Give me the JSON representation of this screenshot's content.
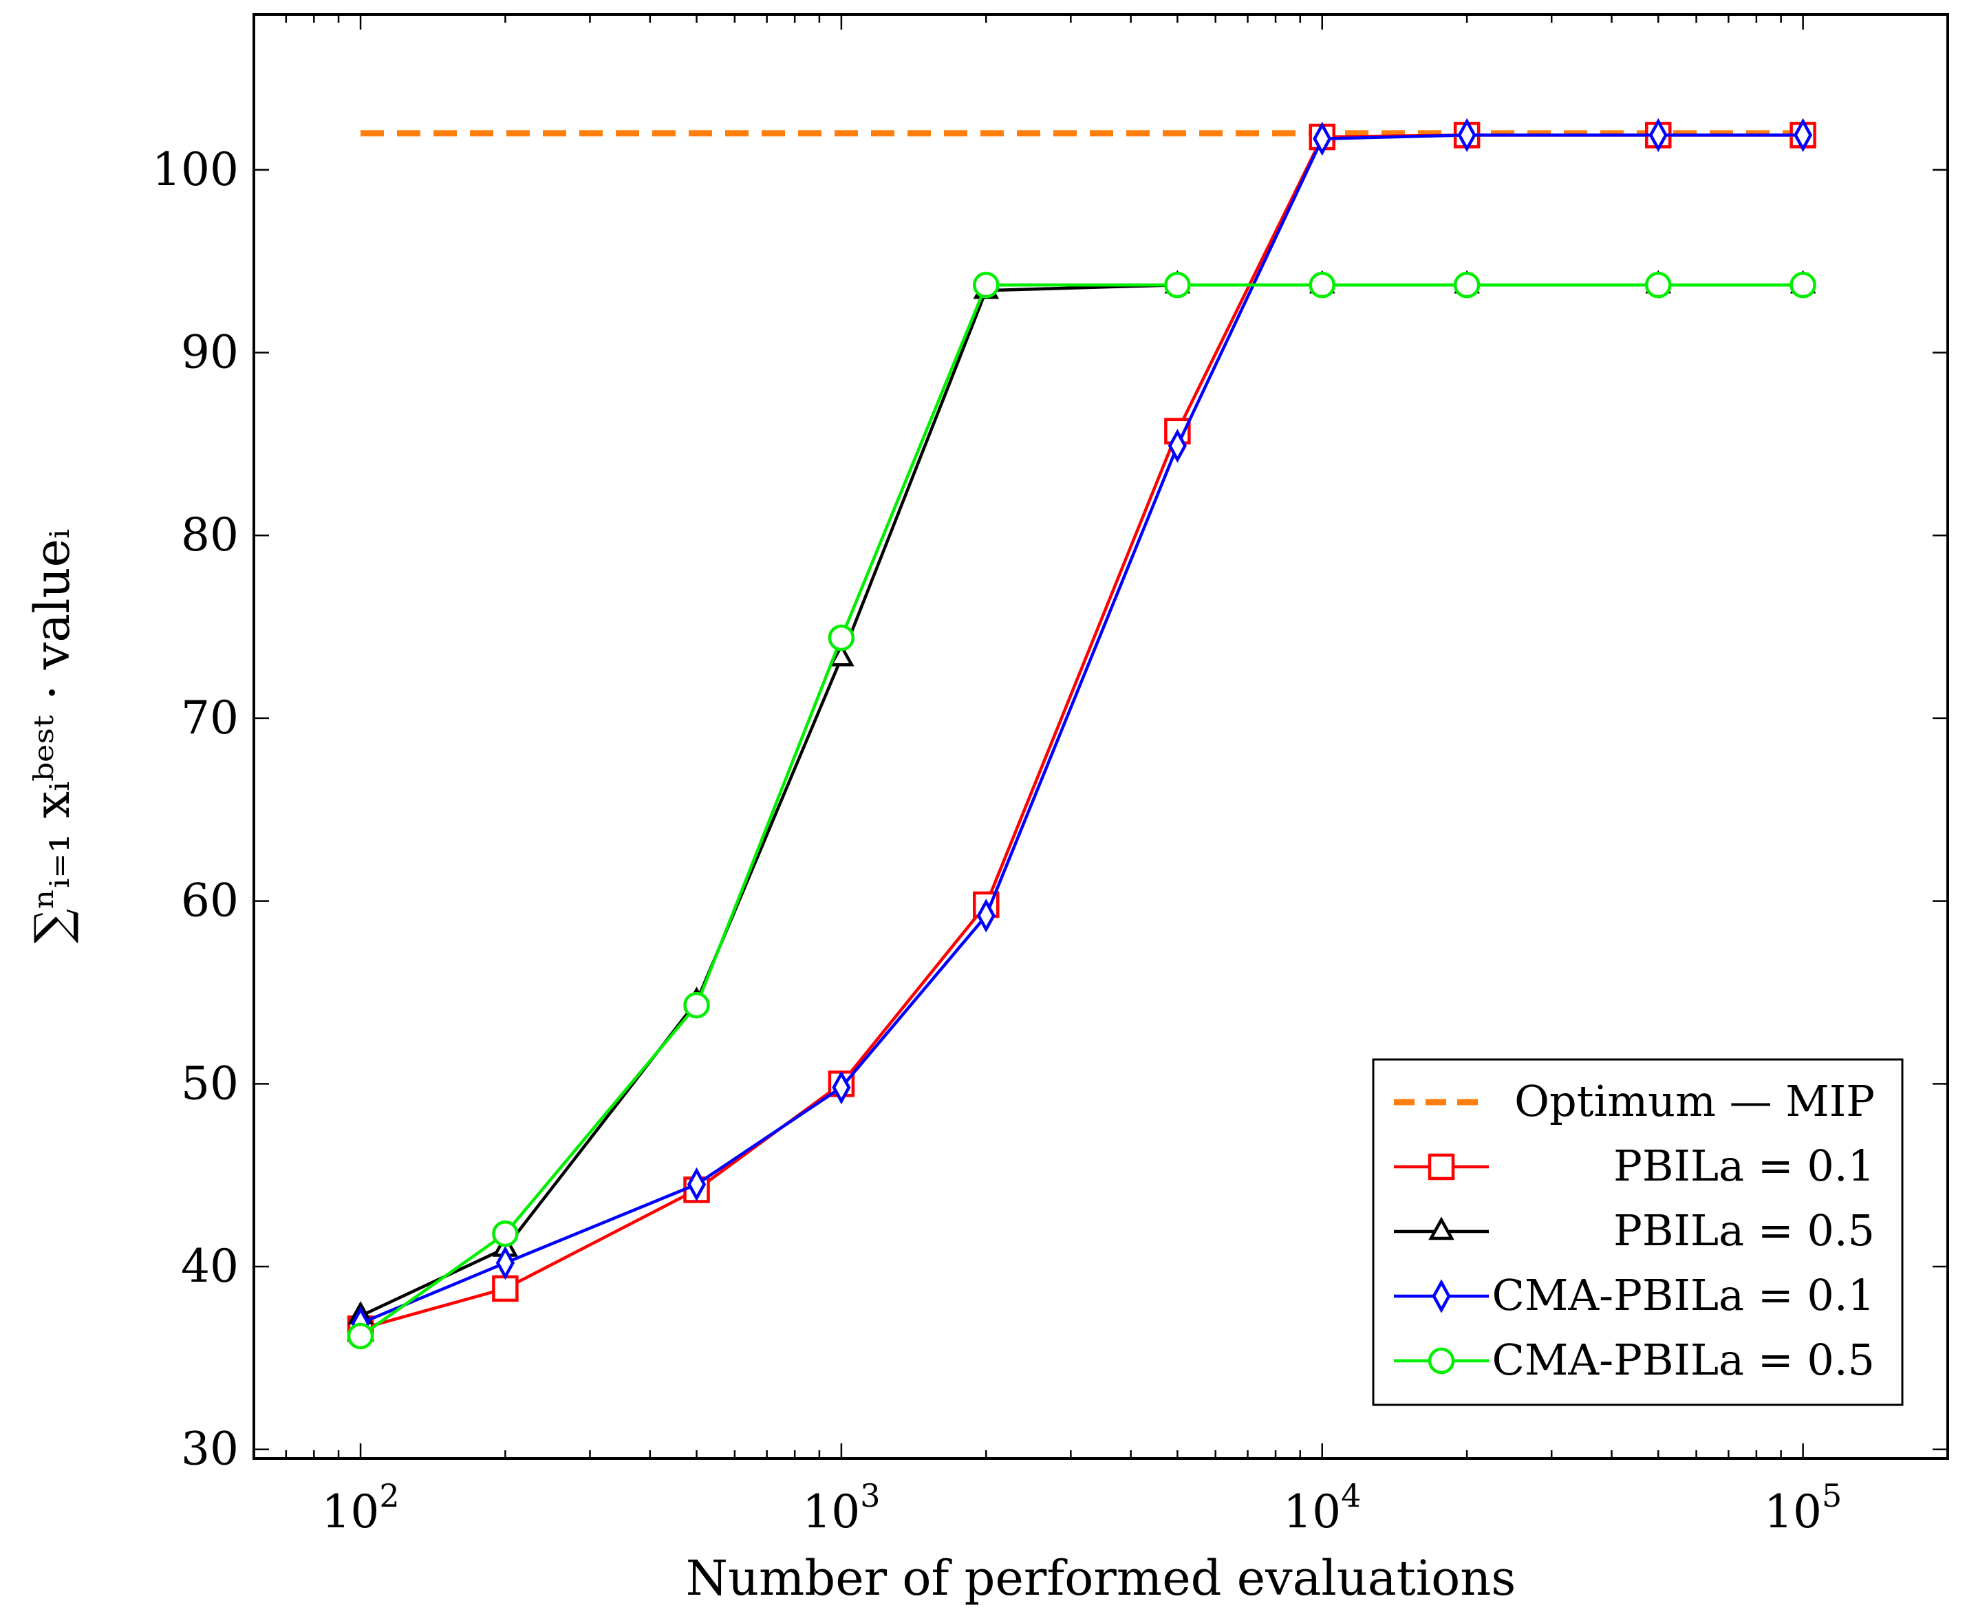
{
  "chart_data": {
    "type": "line",
    "xscale": "log",
    "xlabel": "Number of performed evaluations",
    "ylabel": "∑ⁿᵢ₌₁ xᵢᵇᵉˢᵗ · valueᵢ",
    "xlim": [
      60,
      200000
    ],
    "ylim": [
      29.5,
      108.5
    ],
    "xticks": [
      100,
      1000,
      10000,
      100000
    ],
    "xtick_labels": [
      {
        "base": "10",
        "exp": "2"
      },
      {
        "base": "10",
        "exp": "3"
      },
      {
        "base": "10",
        "exp": "4"
      },
      {
        "base": "10",
        "exp": "5"
      }
    ],
    "yticks": [
      30,
      40,
      50,
      60,
      70,
      80,
      90,
      100
    ],
    "grid": false,
    "legend_position": "bottom-right",
    "series": [
      {
        "name": "Optimum — MIP",
        "color": "#ff7f0e",
        "style": "dashed",
        "marker": "none",
        "x": [
          100,
          100000
        ],
        "y": [
          102,
          102
        ]
      },
      {
        "name": "PBILa = 0.1",
        "color": "#ff0000",
        "style": "solid",
        "marker": "square",
        "x": [
          100,
          200,
          500,
          1000,
          2000,
          5000,
          10000,
          20000,
          50000,
          100000
        ],
        "y": [
          36.6,
          38.8,
          44.2,
          50.0,
          59.8,
          85.7,
          101.8,
          101.9,
          101.9,
          101.9
        ]
      },
      {
        "name": "PBILa = 0.5",
        "color": "#000000",
        "style": "solid",
        "marker": "triangle",
        "x": [
          100,
          200,
          500,
          1000,
          2000,
          5000,
          10000,
          20000,
          50000,
          100000
        ],
        "y": [
          37.3,
          41.0,
          54.5,
          73.3,
          93.4,
          93.7,
          93.7,
          93.7,
          93.7,
          93.7
        ]
      },
      {
        "name": "CMA-PBILa = 0.1",
        "color": "#0000ff",
        "style": "solid",
        "marker": "diamond",
        "x": [
          100,
          200,
          500,
          1000,
          2000,
          5000,
          10000,
          20000,
          50000,
          100000
        ],
        "y": [
          36.9,
          40.2,
          44.5,
          49.8,
          59.2,
          84.9,
          101.7,
          101.9,
          101.9,
          101.9
        ]
      },
      {
        "name": "CMA-PBILa = 0.5",
        "color": "#00ee00",
        "style": "solid",
        "marker": "circle",
        "x": [
          100,
          200,
          500,
          1000,
          2000,
          5000,
          10000,
          20000,
          50000,
          100000
        ],
        "y": [
          36.2,
          41.8,
          54.3,
          74.4,
          93.7,
          93.7,
          93.7,
          93.7,
          93.7,
          93.7
        ]
      }
    ]
  }
}
